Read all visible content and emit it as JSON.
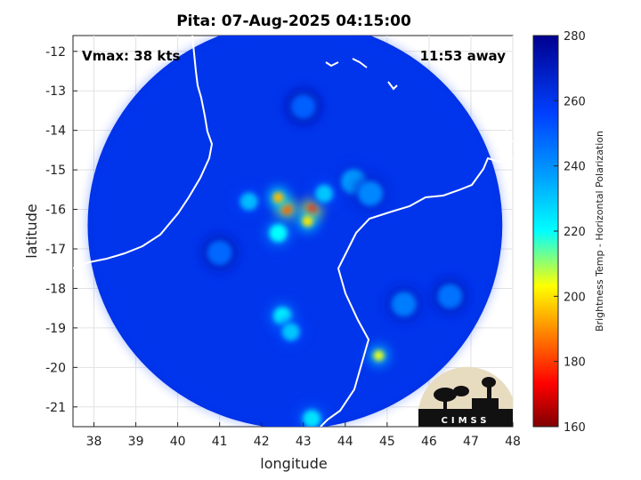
{
  "chart_data": {
    "type": "heatmap",
    "title": "Pita: 07-Aug-2025 04:15:00",
    "xlabel": "longitude",
    "ylabel": "latitude",
    "xlim": [
      37.5,
      48
    ],
    "ylim": [
      -21.5,
      -11.6
    ],
    "xticks": [
      "38",
      "39",
      "40",
      "41",
      "42",
      "43",
      "44",
      "45",
      "46",
      "47",
      "48"
    ],
    "yticks": [
      "-12",
      "-13",
      "-14",
      "-15",
      "-16",
      "-17",
      "-18",
      "-19",
      "-20",
      "-21"
    ],
    "grid": true,
    "colorbar": {
      "label": "Brightness Temp - Horizontal Polarization",
      "range": [
        160,
        280
      ],
      "ticks": [
        "160",
        "180",
        "200",
        "220",
        "240",
        "260",
        "280"
      ],
      "colormap": "jet"
    },
    "annotations": {
      "vmax": "Vmax: 38 kts",
      "time_away": "11:53 away"
    },
    "swath": {
      "center_lon": 42.8,
      "center_lat": -16.4,
      "radius_lon": 4.95,
      "radius_lat": 5.15,
      "background_value": 262
    },
    "features": [
      {
        "lon": 43.2,
        "lat": -16.0,
        "value": 180
      },
      {
        "lon": 42.6,
        "lat": -16.0,
        "value": 185
      },
      {
        "lon": 42.4,
        "lat": -15.7,
        "value": 195
      },
      {
        "lon": 43.1,
        "lat": -16.3,
        "value": 200
      },
      {
        "lon": 43.5,
        "lat": -15.6,
        "value": 230
      },
      {
        "lon": 44.2,
        "lat": -15.3,
        "value": 238
      },
      {
        "lon": 44.6,
        "lat": -15.6,
        "value": 242
      },
      {
        "lon": 42.4,
        "lat": -16.6,
        "value": 220
      },
      {
        "lon": 41.7,
        "lat": -15.8,
        "value": 232
      },
      {
        "lon": 42.5,
        "lat": -18.7,
        "value": 222
      },
      {
        "lon": 42.7,
        "lat": -19.1,
        "value": 230
      },
      {
        "lon": 44.8,
        "lat": -19.7,
        "value": 205
      },
      {
        "lon": 43.2,
        "lat": -21.3,
        "value": 225
      },
      {
        "lon": 45.4,
        "lat": -18.4,
        "value": 244
      },
      {
        "lon": 46.5,
        "lat": -18.2,
        "value": 246
      },
      {
        "lon": 41.0,
        "lat": -17.1,
        "value": 248
      },
      {
        "lon": 43.0,
        "lat": -13.4,
        "value": 250
      }
    ]
  },
  "logo": {
    "text": "CIMSS"
  }
}
